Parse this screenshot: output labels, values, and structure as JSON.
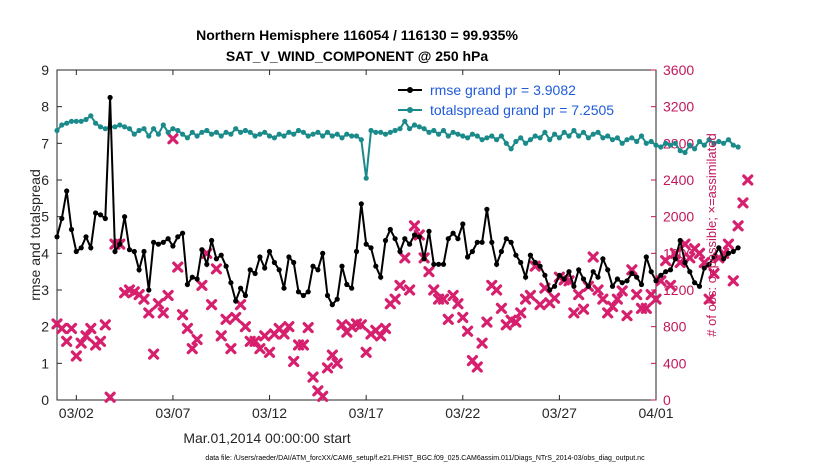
{
  "chart_data": {
    "type": "line",
    "title_lines": [
      "Northern Hemisphere 116054 / 116130 = 99.935%",
      "SAT_V_WIND_COMPONENT @ 250 hPa"
    ],
    "xlabel": "Mar.01,2014 00:00:00 start",
    "ylabel_left": "rmse and totalspread",
    "ylabel_right": "# of obs: o=possible; ×=assimilated",
    "x_start_day": 1.0,
    "x_end_day": 32.0,
    "ylim_left": [
      0,
      9
    ],
    "ylim_right": [
      0,
      3600
    ],
    "x_ticks": [
      {
        "day": 2.0,
        "label": "03/02"
      },
      {
        "day": 7.0,
        "label": "03/07"
      },
      {
        "day": 12.0,
        "label": "03/12"
      },
      {
        "day": 17.0,
        "label": "03/17"
      },
      {
        "day": 22.0,
        "label": "03/22"
      },
      {
        "day": 27.0,
        "label": "03/27"
      },
      {
        "day": 32.0,
        "label": "04/01"
      }
    ],
    "y_ticks_left": [
      "0",
      "1",
      "2",
      "3",
      "4",
      "5",
      "6",
      "7",
      "8",
      "9"
    ],
    "y_ticks_right": [
      "0",
      "400",
      "800",
      "1200",
      "1600",
      "2000",
      "2400",
      "2800",
      "3200",
      "3600"
    ],
    "legend": [
      "rmse grand pr = 3.9082",
      "totalspread grand pr = 7.2505"
    ],
    "footnote": "data file: /Users/raeder/DAI/ATM_forcXX/CAM6_setup/f.e21.FHIST_BGC.f09_025.CAM6assim.011/Diags_NTrS_2014-03/obs_diag_output.nc",
    "series": [
      {
        "name": "rmse",
        "axis": "left",
        "color": "#000000",
        "time_step_days": 0.25,
        "values": [
          4.45,
          4.95,
          5.7,
          4.65,
          4.05,
          4.15,
          4.45,
          4.15,
          5.1,
          5.05,
          4.95,
          8.25,
          4.05,
          4.25,
          5.0,
          4.1,
          4.05,
          3.55,
          4.05,
          3.0,
          4.3,
          4.25,
          4.3,
          4.4,
          4.2,
          4.45,
          4.55,
          3.15,
          3.35,
          3.3,
          4.1,
          3.7,
          4.35,
          3.85,
          3.95,
          3.65,
          3.2,
          2.7,
          3.05,
          2.85,
          3.55,
          3.45,
          3.9,
          3.6,
          4.05,
          3.75,
          3.55,
          3.05,
          3.9,
          3.75,
          2.95,
          2.85,
          2.95,
          3.65,
          3.55,
          4.0,
          2.85,
          2.6,
          2.75,
          3.65,
          3.15,
          3.05,
          4.05,
          5.35,
          4.25,
          4.15,
          3.65,
          3.35,
          4.35,
          4.65,
          4.4,
          4.05,
          4.4,
          4.25,
          4.5,
          4.45,
          3.85,
          4.6,
          3.7,
          3.7,
          3.7,
          4.4,
          4.55,
          4.4,
          4.8,
          3.9,
          4.05,
          4.3,
          4.3,
          5.2,
          4.3,
          3.7,
          4.05,
          4.4,
          4.3,
          3.95,
          3.75,
          3.35,
          3.95,
          3.75,
          3.65,
          3.4,
          3.0,
          3.1,
          3.4,
          3.3,
          3.5,
          3.1,
          3.55,
          3.3,
          3.1,
          3.5,
          3.35,
          3.85,
          3.55,
          3.1,
          3.3,
          3.2,
          3.25,
          3.45,
          3.35,
          3.15,
          3.9,
          3.5,
          3.25,
          3.4,
          3.5,
          3.55,
          3.85,
          4.35,
          3.75,
          3.5,
          3.2,
          3.1,
          3.6,
          3.7,
          3.9,
          4.15,
          3.85,
          4.0,
          4.05,
          4.15
        ]
      },
      {
        "name": "totalspread",
        "axis": "left",
        "color": "#1a8a8a",
        "time_step_days": 0.25,
        "values": [
          7.35,
          7.5,
          7.55,
          7.6,
          7.6,
          7.6,
          7.65,
          7.75,
          7.55,
          7.45,
          7.4,
          7.45,
          7.45,
          7.5,
          7.45,
          7.4,
          7.25,
          7.35,
          7.4,
          7.2,
          7.4,
          7.25,
          7.5,
          7.3,
          7.4,
          7.35,
          7.25,
          7.15,
          7.3,
          7.2,
          7.3,
          7.35,
          7.25,
          7.3,
          7.2,
          7.3,
          7.25,
          7.4,
          7.3,
          7.35,
          7.3,
          7.2,
          7.25,
          7.3,
          7.2,
          7.15,
          7.25,
          7.2,
          7.3,
          7.25,
          7.35,
          7.3,
          7.2,
          7.25,
          7.3,
          7.2,
          7.3,
          7.2,
          7.25,
          7.15,
          7.25,
          7.2,
          7.2,
          7.1,
          6.05,
          7.35,
          7.3,
          7.3,
          7.25,
          7.3,
          7.35,
          7.4,
          7.6,
          7.4,
          7.5,
          7.45,
          7.4,
          7.3,
          7.35,
          7.25,
          7.35,
          7.2,
          7.3,
          7.25,
          7.2,
          7.15,
          7.25,
          7.2,
          7.1,
          7.15,
          7.2,
          7.1,
          7.2,
          7.0,
          6.85,
          7.05,
          7.15,
          7.0,
          7.1,
          7.2,
          7.15,
          7.3,
          7.1,
          7.25,
          7.15,
          7.3,
          7.2,
          7.35,
          7.2,
          7.3,
          7.15,
          7.25,
          7.3,
          7.15,
          7.2,
          7.1,
          7.15,
          7.0,
          7.1,
          7.15,
          7.05,
          7.2,
          7.0,
          7.05,
          6.95,
          6.9,
          7.0,
          6.95,
          7.0,
          6.8,
          6.75,
          6.95,
          6.85,
          7.05,
          6.95,
          7.1,
          7.0,
          7.05,
          7.0,
          7.1,
          6.95,
          6.9
        ]
      },
      {
        "name": "obs assimilated",
        "axis": "right",
        "color": "#d6206e",
        "time_step_days": 0.25,
        "values": [
          830,
          780,
          640,
          780,
          480,
          620,
          700,
          780,
          600,
          640,
          820,
          30,
          1700,
          1700,
          1170,
          1200,
          1180,
          1150,
          1100,
          950,
          500,
          1050,
          950,
          1140,
          2850,
          1450,
          930,
          780,
          560,
          660,
          1250,
          1600,
          1040,
          1430,
          700,
          880,
          560,
          900,
          1040,
          800,
          640,
          640,
          560,
          700,
          520,
          720,
          780,
          720,
          800,
          420,
          600,
          600,
          790,
          250,
          100,
          40,
          350,
          490,
          400,
          820,
          740,
          800,
          830,
          820,
          520,
          720,
          760,
          700,
          780,
          1050,
          1100,
          1250,
          1550,
          1200,
          1900,
          1800,
          1550,
          1400,
          1200,
          1100,
          1100,
          880,
          1140,
          1050,
          900,
          750,
          430,
          360,
          620,
          850,
          1250,
          1200,
          1000,
          820,
          870,
          850,
          950,
          1100,
          1140,
          1460,
          1040,
          1220,
          1060,
          1110,
          1340,
          1310,
          1300,
          950,
          1150,
          990,
          1240,
          1560,
          1200,
          1100,
          950,
          1020,
          1100,
          1190,
          920,
          1420,
          1150,
          1000,
          1000,
          1150,
          1100,
          1300,
          1520,
          1250,
          1600,
          1500,
          1700,
          1550,
          1650,
          1600,
          1500,
          1100,
          1380,
          1550,
          1600,
          1700,
          1300,
          1900,
          2150,
          2400
        ]
      }
    ]
  }
}
